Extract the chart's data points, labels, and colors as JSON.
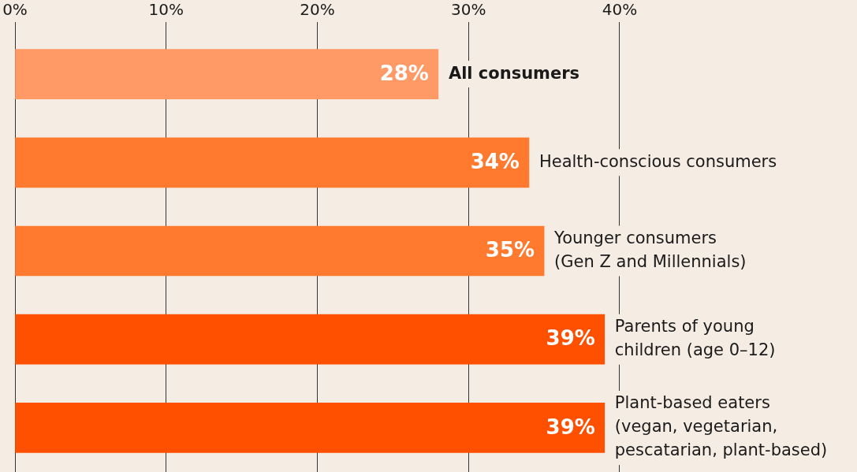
{
  "chart_data": {
    "type": "bar",
    "orientation": "horizontal",
    "categories": [
      "All consumers",
      "Health-conscious consumers",
      "Younger consumers\n(Gen Z and Millennials)",
      "Parents of young\nchildren (age 0–12)",
      "Plant-based eaters\n(vegan, vegetarian,\npescatarian, plant-based)"
    ],
    "values": [
      28,
      34,
      35,
      39,
      39
    ],
    "colors": [
      "#ff9966",
      "#ff7a2e",
      "#ff7a2e",
      "#ff5000",
      "#ff5000"
    ],
    "xlim": [
      0,
      55.7
    ],
    "xticks": [
      {
        "value": 0,
        "label": "0%"
      },
      {
        "value": 10,
        "label": "10%"
      },
      {
        "value": 20,
        "label": "20%"
      },
      {
        "value": 30,
        "label": "30%"
      },
      {
        "value": 40,
        "label": "40%"
      }
    ],
    "value_labels": [
      "28%",
      "34%",
      "35%",
      "39%",
      "39%"
    ],
    "grid": "x"
  }
}
